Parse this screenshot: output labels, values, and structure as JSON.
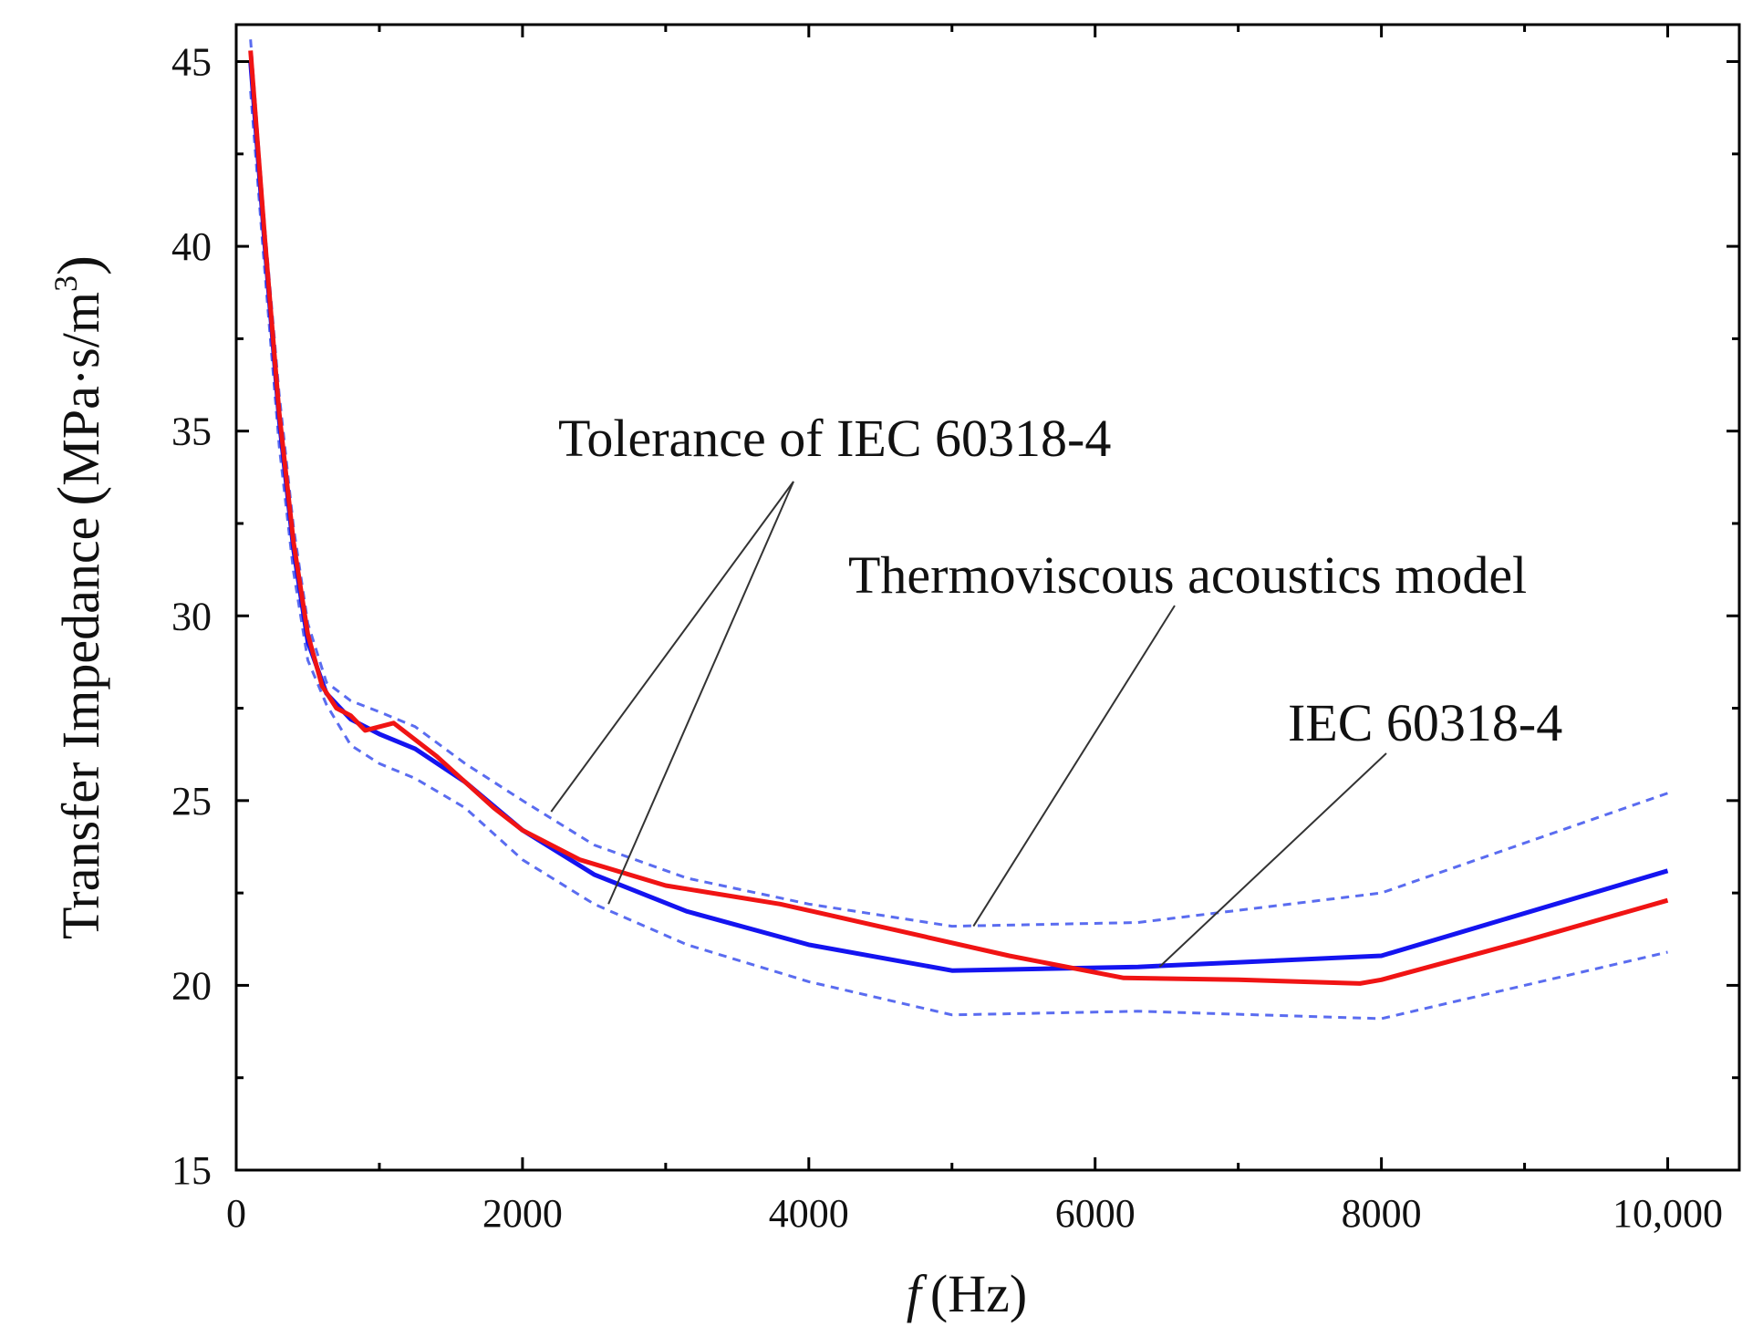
{
  "chart_data": {
    "type": "line",
    "title": "",
    "xlabel_italic": "f",
    "xlabel_unit": "(Hz)",
    "ylabel": "Transfer Impedance (MPa·s/m³)",
    "ylabel_text": "Transfer Impedance",
    "ylabel_paren_open": "(",
    "ylabel_unit": "MPa·s/m",
    "ylabel_sup": "3",
    "ylabel_paren_close": ")",
    "xlim": [
      0,
      10500
    ],
    "ylim": [
      15,
      46
    ],
    "xticks": [
      {
        "value": 0,
        "label": "0"
      },
      {
        "value": 2000,
        "label": "2000"
      },
      {
        "value": 4000,
        "label": "4000"
      },
      {
        "value": 6000,
        "label": "6000"
      },
      {
        "value": 8000,
        "label": "8000"
      },
      {
        "value": 10000,
        "label": "10,000"
      }
    ],
    "xminor": [
      1000,
      3000,
      5000,
      7000,
      9000
    ],
    "yticks": [
      {
        "value": 15,
        "label": "15"
      },
      {
        "value": 20,
        "label": "20"
      },
      {
        "value": 25,
        "label": "25"
      },
      {
        "value": 30,
        "label": "30"
      },
      {
        "value": 35,
        "label": "35"
      },
      {
        "value": 40,
        "label": "40"
      },
      {
        "value": 45,
        "label": "45"
      }
    ],
    "yminor": [
      17.5,
      22.5,
      27.5,
      32.5,
      37.5,
      42.5
    ],
    "series": [
      {
        "name": "Tolerance of IEC 60318-4 (upper)",
        "color": "#5a6cf0",
        "style": "dashed",
        "x": [
          100,
          200,
          300,
          400,
          500,
          630,
          800,
          1000,
          1250,
          1600,
          2000,
          2500,
          3150,
          4000,
          5000,
          6300,
          8000,
          10000
        ],
        "y": [
          45.6,
          40.5,
          36.0,
          32.4,
          29.8,
          28.2,
          27.7,
          27.4,
          27.0,
          26.0,
          25.0,
          23.8,
          22.9,
          22.2,
          21.6,
          21.7,
          22.5,
          25.2
        ]
      },
      {
        "name": "Tolerance of IEC 60318-4 (lower)",
        "color": "#5a6cf0",
        "style": "dashed",
        "x": [
          100,
          200,
          300,
          400,
          500,
          630,
          800,
          1000,
          1250,
          1600,
          2000,
          2500,
          3150,
          4000,
          5000,
          6300,
          8000,
          10000
        ],
        "y": [
          44.2,
          39.3,
          34.6,
          31.2,
          28.8,
          27.6,
          26.5,
          26.0,
          25.6,
          24.8,
          23.4,
          22.2,
          21.1,
          20.1,
          19.2,
          19.3,
          19.1,
          20.9
        ]
      },
      {
        "name": "IEC 60318-4",
        "color": "#1414f0",
        "style": "solid",
        "x": [
          100,
          200,
          300,
          400,
          500,
          630,
          800,
          1000,
          1250,
          1600,
          2000,
          2500,
          3150,
          4000,
          5000,
          6300,
          8000,
          10000
        ],
        "y": [
          45.0,
          40.0,
          35.3,
          31.8,
          29.3,
          27.9,
          27.2,
          26.8,
          26.4,
          25.5,
          24.2,
          23.0,
          22.0,
          21.1,
          20.4,
          20.5,
          20.8,
          23.1
        ]
      },
      {
        "name": "Thermoviscous acoustics model",
        "color": "#f01414",
        "style": "solid",
        "x": [
          100,
          200,
          300,
          400,
          500,
          600,
          700,
          800,
          900,
          1100,
          1400,
          1800,
          2000,
          2400,
          3000,
          3800,
          4600,
          5400,
          6200,
          7000,
          7850,
          8000,
          9000,
          10000
        ],
        "y": [
          45.3,
          40.2,
          35.5,
          32.0,
          29.5,
          28.1,
          27.5,
          27.3,
          26.9,
          27.1,
          26.2,
          24.8,
          24.2,
          23.4,
          22.7,
          22.2,
          21.5,
          20.8,
          20.2,
          20.15,
          20.05,
          20.15,
          21.2,
          22.3
        ]
      }
    ],
    "annotations": {
      "tolerance": {
        "text": "Tolerance of IEC 60318-4",
        "targets": [
          {
            "x": 2200,
            "y": 24.7
          },
          {
            "x": 2600,
            "y": 22.2
          }
        ]
      },
      "model": {
        "text": "Thermoviscous acoustics model",
        "target": {
          "x": 5150,
          "y": 21.6
        }
      },
      "iec": {
        "text": "IEC 60318-4",
        "target": {
          "x": 6450,
          "y": 20.5
        }
      }
    }
  }
}
